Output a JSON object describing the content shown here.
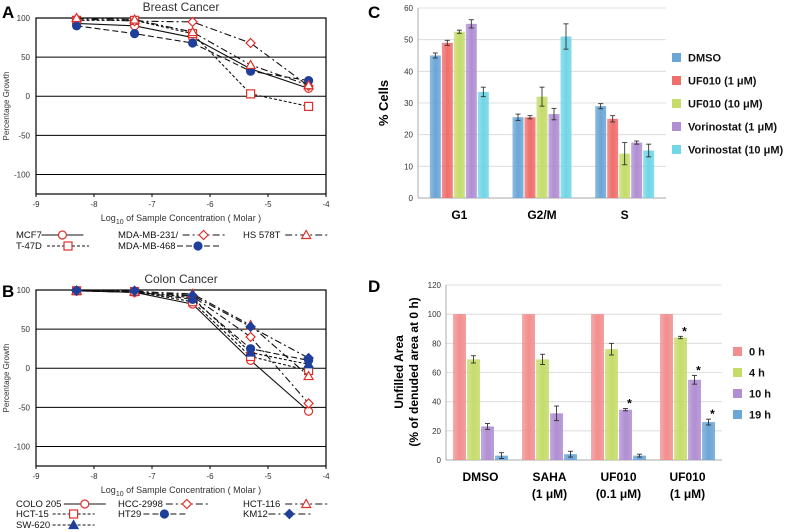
{
  "panel_letters": {
    "a": "A",
    "b": "B",
    "c": "C",
    "d": "D"
  },
  "chart_data": [
    {
      "panel": "A",
      "type": "line",
      "title": "Breast Cancer",
      "xlabel": "Log10 of Sample Concentration ( Molar )",
      "xlabel_parts": {
        "pre": "Log",
        "sub": "10",
        "post": " of Sample Concentration ( Molar )"
      },
      "ylabel": "Percentage Growth",
      "xlim": [
        -9,
        -4
      ],
      "ylim": [
        -125,
        100
      ],
      "xticks": [
        -9,
        -8,
        -7,
        -6,
        -5,
        -4
      ],
      "yticks": [
        100,
        50,
        0,
        -50,
        -100
      ],
      "x": [
        -8.3,
        -7.3,
        -6.3,
        -5.3,
        -4.3
      ],
      "series": [
        {
          "name": "MCF7",
          "marker": "circle-open",
          "dash": "",
          "values": [
            93,
            90,
            75,
            35,
            10
          ]
        },
        {
          "name": "T-47D",
          "marker": "square-open",
          "dash": "3,2",
          "values": [
            97,
            97,
            80,
            3,
            -13
          ]
        },
        {
          "name": "MDA-MB-231/",
          "marker": "diamond-open",
          "dash": "7,3,2,3",
          "values": [
            99,
            96,
            95,
            68,
            13
          ]
        },
        {
          "name": "MDA-MB-468",
          "marker": "circle-filled",
          "dash": "6,3",
          "values": [
            90,
            80,
            68,
            32,
            20
          ]
        },
        {
          "name": "HS 578T",
          "marker": "triangle-open",
          "dash": "7,3,2,3",
          "values": [
            100,
            98,
            82,
            40,
            14
          ]
        }
      ]
    },
    {
      "panel": "B",
      "type": "line",
      "title": "Colon Cancer",
      "xlabel": "Log10 of Sample Concentration ( Molar )",
      "xlabel_parts": {
        "pre": "Log",
        "sub": "10",
        "post": " of Sample Concentration ( Molar )"
      },
      "ylabel": "Percentage Growth",
      "xlim": [
        -9,
        -4
      ],
      "ylim": [
        -125,
        100
      ],
      "xticks": [
        -9,
        -8,
        -7,
        -6,
        -5,
        -4
      ],
      "yticks": [
        100,
        50,
        0,
        -50,
        -100
      ],
      "x": [
        -8.3,
        -7.3,
        -6.3,
        -5.3,
        -4.3
      ],
      "series": [
        {
          "name": "COLO 205",
          "marker": "circle-open",
          "dash": "",
          "values": [
            99,
            97,
            82,
            10,
            -55
          ]
        },
        {
          "name": "HCT-15",
          "marker": "square-open",
          "dash": "3,2",
          "values": [
            99,
            98,
            85,
            15,
            -3
          ]
        },
        {
          "name": "SW-620",
          "marker": "triangle-filled",
          "dash": "3,2",
          "values": [
            99,
            98,
            90,
            20,
            5
          ]
        },
        {
          "name": "HCC-2998",
          "marker": "diamond-open",
          "dash": "7,3,2,3",
          "values": [
            99,
            97,
            92,
            40,
            -45
          ]
        },
        {
          "name": "HT29",
          "marker": "circle-filled",
          "dash": "6,3",
          "values": [
            99,
            98,
            88,
            25,
            10
          ]
        },
        {
          "name": "HCT-116",
          "marker": "triangle-open",
          "dash": "7,3,2,3",
          "values": [
            99,
            98,
            95,
            55,
            -10
          ]
        },
        {
          "name": "KM12",
          "marker": "diamond-filled",
          "dash": "7,3,2,3",
          "values": [
            99,
            99,
            93,
            53,
            13
          ]
        }
      ]
    },
    {
      "panel": "C",
      "type": "bar",
      "ylabel": "% Cells",
      "ylim": [
        0,
        60
      ],
      "yticks": [
        0,
        10,
        20,
        30,
        40,
        50,
        60
      ],
      "categories": [
        "G1",
        "G2/M",
        "S"
      ],
      "series": [
        {
          "name": "DMSO",
          "color": "#6aa6d6",
          "values": [
            45,
            25.5,
            29
          ],
          "errors": [
            0.8,
            1,
            0.8
          ]
        },
        {
          "name": "UF010 (1 μM)",
          "color": "#ef6f6c",
          "values": [
            49,
            25.5,
            25
          ],
          "errors": [
            0.8,
            0.5,
            1
          ]
        },
        {
          "name": "UF010 (10 μM)",
          "color": "#c5dc6b",
          "values": [
            52.5,
            32,
            14
          ],
          "errors": [
            0.5,
            3,
            3.5
          ]
        },
        {
          "name": "Vorinostat (1 μM)",
          "color": "#b08ed3",
          "values": [
            55,
            26.5,
            17.5
          ],
          "errors": [
            1.3,
            1.8,
            0.5
          ]
        },
        {
          "name": "Vorinostat (10 μM)",
          "color": "#71d6e6",
          "values": [
            33.5,
            51,
            15
          ],
          "errors": [
            1.5,
            4,
            2
          ]
        }
      ]
    },
    {
      "panel": "D",
      "type": "bar",
      "ylabel": "Unfilled Area",
      "ylabel2": "(% of denuded area at 0 h)",
      "ylim": [
        0,
        120
      ],
      "yticks": [
        0,
        20,
        40,
        60,
        80,
        100,
        120
      ],
      "categories": [
        "DMSO",
        "SAHA",
        "UF010",
        "UF010"
      ],
      "categories_sub": [
        "",
        "(1 μM)",
        "(0.1 μM)",
        "(1 μM)"
      ],
      "series": [
        {
          "name": "0 h",
          "color": "#f28e8e",
          "values": [
            100,
            100,
            100,
            100
          ],
          "errors": [
            0,
            0,
            0,
            0
          ],
          "stars": [
            false,
            false,
            false,
            false
          ]
        },
        {
          "name": "4 h",
          "color": "#c5dc6b",
          "values": [
            69,
            69,
            76,
            84
          ],
          "errors": [
            2.5,
            3.5,
            4,
            0.8
          ],
          "stars": [
            false,
            false,
            false,
            true
          ]
        },
        {
          "name": "10 h",
          "color": "#b08ed3",
          "values": [
            23,
            32,
            34.5,
            55
          ],
          "errors": [
            2,
            5,
            0.8,
            3
          ],
          "stars": [
            false,
            false,
            true,
            true
          ]
        },
        {
          "name": "19 h",
          "color": "#6aa6d6",
          "values": [
            3,
            4,
            3,
            26
          ],
          "errors": [
            2,
            2,
            1,
            2
          ],
          "stars": [
            false,
            false,
            false,
            true
          ]
        }
      ],
      "star_label": "*"
    }
  ]
}
